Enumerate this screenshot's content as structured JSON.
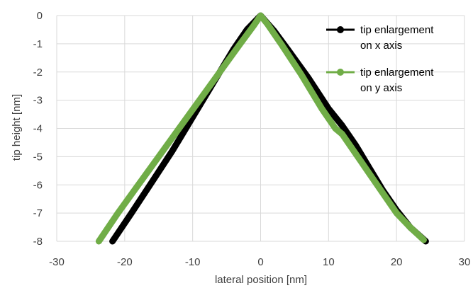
{
  "chart_data": {
    "type": "line",
    "title": "",
    "xlabel": "lateral position [nm]",
    "ylabel": "tip height [nm]",
    "xlim": [
      -30,
      30
    ],
    "ylim": [
      -8,
      0
    ],
    "x_ticks": [
      -30,
      -20,
      -10,
      0,
      10,
      20,
      30
    ],
    "y_ticks": [
      0,
      -1,
      -2,
      -3,
      -4,
      -5,
      -6,
      -7,
      -8
    ],
    "grid": true,
    "legend_position": "top-right",
    "series": [
      {
        "name_lines": [
          "tip enlargement",
          "on x axis"
        ],
        "color": "#000000",
        "x": [
          -21.8,
          -19,
          -16,
          -13,
          -10,
          -7,
          -4,
          -2,
          0,
          2,
          4,
          7,
          10,
          12,
          14,
          16,
          18,
          20,
          22,
          24.3
        ],
        "y": [
          -8.0,
          -7.0,
          -5.9,
          -4.8,
          -3.6,
          -2.4,
          -1.2,
          -0.5,
          0.0,
          -0.55,
          -1.2,
          -2.2,
          -3.3,
          -3.9,
          -4.6,
          -5.4,
          -6.2,
          -6.9,
          -7.5,
          -8.0
        ]
      },
      {
        "name_lines": [
          "tip enlargement",
          "on y axis"
        ],
        "color": "#70ad47",
        "x": [
          -23.8,
          -21,
          -18,
          -15,
          -12,
          -9,
          -6,
          -3,
          -1,
          0,
          1,
          3,
          6,
          9,
          11,
          12,
          14,
          16,
          18,
          20,
          22,
          24
        ],
        "y": [
          -8.0,
          -7.0,
          -6.0,
          -5.0,
          -4.0,
          -3.0,
          -2.0,
          -1.0,
          -0.35,
          0.0,
          -0.3,
          -1.0,
          -2.1,
          -3.3,
          -4.0,
          -4.2,
          -4.9,
          -5.6,
          -6.3,
          -7.0,
          -7.5,
          -7.95
        ]
      }
    ]
  }
}
